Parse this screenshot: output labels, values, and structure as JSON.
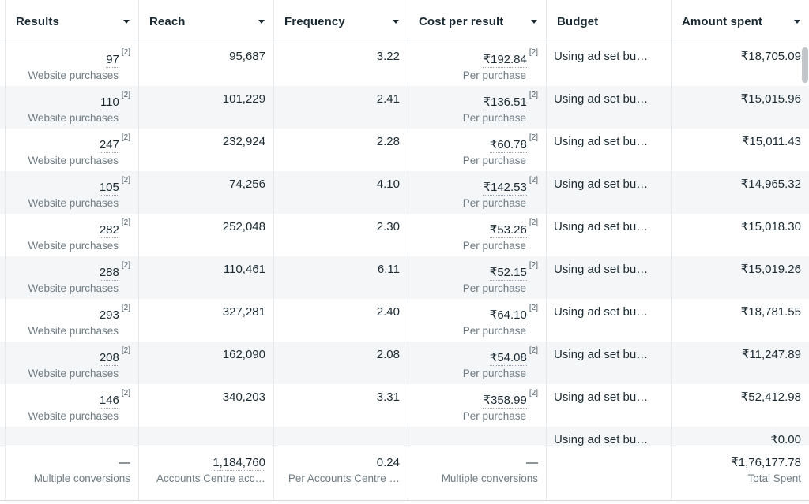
{
  "columns": [
    {
      "label": "Results",
      "sortable": true
    },
    {
      "label": "Reach",
      "sortable": true
    },
    {
      "label": "Frequency",
      "sortable": true
    },
    {
      "label": "Cost per result",
      "sortable": true
    },
    {
      "label": "Budget",
      "sortable": false
    },
    {
      "label": "Amount spent",
      "sortable": true
    }
  ],
  "rows": [
    {
      "results": "97",
      "results_note": "[2]",
      "results_label": "Website purchases",
      "reach": "95,687",
      "frequency": "3.22",
      "cost": "₹192.84",
      "cost_note": "[2]",
      "cost_label": "Per purchase",
      "budget": "Using ad set bu…",
      "amount": "₹18,705.09"
    },
    {
      "results": "110",
      "results_note": "[2]",
      "results_label": "Website purchases",
      "reach": "101,229",
      "frequency": "2.41",
      "cost": "₹136.51",
      "cost_note": "[2]",
      "cost_label": "Per purchase",
      "budget": "Using ad set bu…",
      "amount": "₹15,015.96"
    },
    {
      "results": "247",
      "results_note": "[2]",
      "results_label": "Website purchases",
      "reach": "232,924",
      "frequency": "2.28",
      "cost": "₹60.78",
      "cost_note": "[2]",
      "cost_label": "Per purchase",
      "budget": "Using ad set bu…",
      "amount": "₹15,011.43"
    },
    {
      "results": "105",
      "results_note": "[2]",
      "results_label": "Website purchases",
      "reach": "74,256",
      "frequency": "4.10",
      "cost": "₹142.53",
      "cost_note": "[2]",
      "cost_label": "Per purchase",
      "budget": "Using ad set bu…",
      "amount": "₹14,965.32"
    },
    {
      "results": "282",
      "results_note": "[2]",
      "results_label": "Website purchases",
      "reach": "252,048",
      "frequency": "2.30",
      "cost": "₹53.26",
      "cost_note": "[2]",
      "cost_label": "Per purchase",
      "budget": "Using ad set bu…",
      "amount": "₹15,018.30"
    },
    {
      "results": "288",
      "results_note": "[2]",
      "results_label": "Website purchases",
      "reach": "110,461",
      "frequency": "6.11",
      "cost": "₹52.15",
      "cost_note": "[2]",
      "cost_label": "Per purchase",
      "budget": "Using ad set bu…",
      "amount": "₹15,019.26"
    },
    {
      "results": "293",
      "results_note": "[2]",
      "results_label": "Website purchases",
      "reach": "327,281",
      "frequency": "2.40",
      "cost": "₹64.10",
      "cost_note": "[2]",
      "cost_label": "Per purchase",
      "budget": "Using ad set bu…",
      "amount": "₹18,781.55"
    },
    {
      "results": "208",
      "results_note": "[2]",
      "results_label": "Website purchases",
      "reach": "162,090",
      "frequency": "2.08",
      "cost": "₹54.08",
      "cost_note": "[2]",
      "cost_label": "Per purchase",
      "budget": "Using ad set bu…",
      "amount": "₹11,247.89"
    },
    {
      "results": "146",
      "results_note": "[2]",
      "results_label": "Website purchases",
      "reach": "340,203",
      "frequency": "3.31",
      "cost": "₹358.99",
      "cost_note": "[2]",
      "cost_label": "Per purchase",
      "budget": "Using ad set bu…",
      "amount": "₹52,412.98"
    }
  ],
  "partial_row": {
    "budget": "Using ad set bu…",
    "amount": "₹0.00"
  },
  "footer": {
    "results_value": "—",
    "results_label": "Multiple conversions",
    "reach_value": "1,184,760",
    "reach_label": "Accounts Centre acc…",
    "frequency_value": "0.24",
    "frequency_label": "Per Accounts Centre …",
    "cost_value": "—",
    "cost_label": "Multiple conversions",
    "budget_value": "",
    "amount_value": "₹1,76,177.78",
    "amount_label": "Total Spent"
  },
  "colors": {
    "text_dark": "#1c2b33",
    "text_muted": "#6f7c84",
    "alt_row_bg": "#f5f6f7",
    "divider": "#e4e6ea",
    "strong_border": "#ccd1d5",
    "scrollbar_thumb": "#c2c6cb"
  }
}
